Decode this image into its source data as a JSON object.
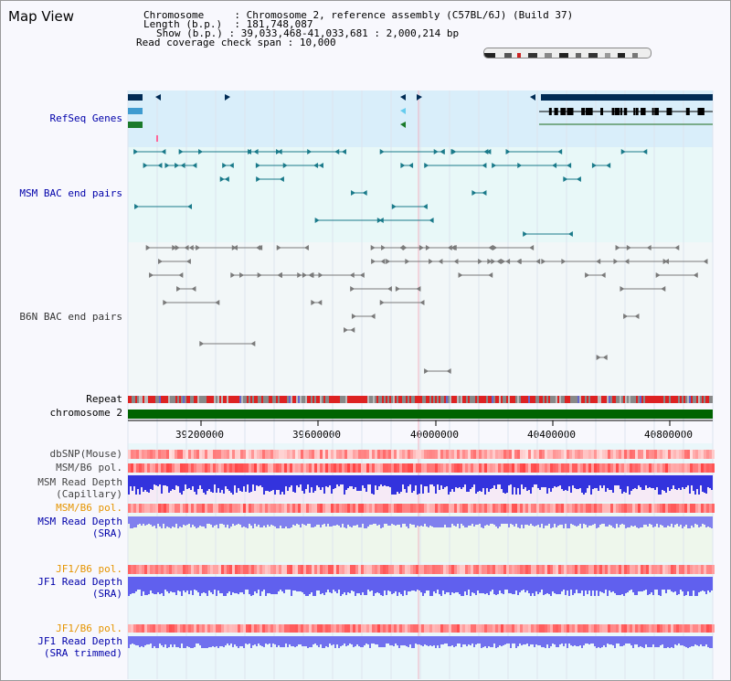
{
  "title": "Map View",
  "info": {
    "chromosome_key": "Chromosome",
    "chromosome_val": "Chromosome 2, reference assembly (C57BL/6J) (Build 37)",
    "length_key": "Length (b.p.)",
    "length_val": "181,748,087",
    "show_key": "Show (b.p.)",
    "show_val": "39,033,468-41,033,681 : 2,000,214 bp",
    "coverage_key": "Read coverage check span",
    "coverage_val": "10,000"
  },
  "tracks": {
    "refseq": "RefSeq Genes",
    "msm_bac": "MSM BAC end pairs",
    "b6n_bac": "B6N BAC end pairs",
    "repeat": "Repeat",
    "chromosome": "chromosome 2",
    "dbsnp": "dbSNP(Mouse)",
    "msm_b6_pol_1": "MSM/B6 pol.",
    "msm_depth_cap_1": "MSM Read Depth",
    "msm_depth_cap_2": "(Capillary)",
    "msm_b6_pol_2": "MSM/B6 pol.",
    "msm_depth_sra_1": "MSM Read Depth",
    "msm_depth_sra_2": "(SRA)",
    "jf1_b6_pol_1": "JF1/B6 pol.",
    "jf1_depth_sra_1": "JF1 Read Depth",
    "jf1_depth_sra_2": "(SRA)",
    "jf1_b6_pol_2": "JF1/B6 pol.",
    "jf1_depth_trim_1": "JF1 Read Depth",
    "jf1_depth_trim_2": "(SRA trimmed)"
  },
  "axis": {
    "ticks": [
      "39200000",
      "39600000",
      "40000000",
      "40400000",
      "40800000"
    ]
  },
  "colors": {
    "refseq_bg": "#d9eefa",
    "msm_bg": "#e8f8f8",
    "b6n_bg": "#f2f7f8",
    "gene_dark": "#002b55",
    "msm_feature": "#1a7a8a",
    "b6n_feature": "#7a7a7a",
    "chromosome_bar": "#006400",
    "depth_blue": "#3333dd",
    "depth_light": "#8080ee",
    "pol_red": "#ee3333"
  }
}
